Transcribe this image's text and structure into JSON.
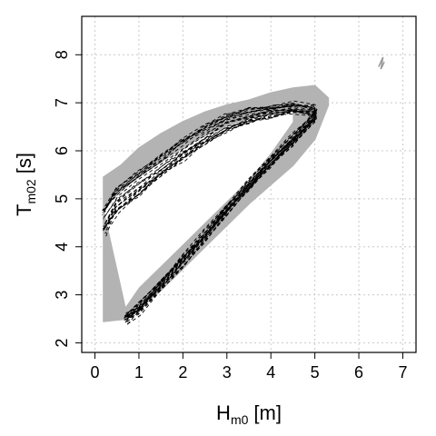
{
  "chart_data": {
    "type": "line",
    "title": "",
    "xlabel": "H",
    "xlabel_sub": "m0",
    "xlabel_unit": "[m]",
    "ylabel": "T",
    "ylabel_sub": "m02",
    "ylabel_unit": "[s]",
    "xlim": [
      -0.3,
      7.3
    ],
    "ylim": [
      1.8,
      8.8
    ],
    "x_ticks": [
      0,
      1,
      2,
      3,
      4,
      5,
      6,
      7
    ],
    "y_ticks": [
      2,
      3,
      4,
      5,
      6,
      7,
      8
    ],
    "x_tick_labels": [
      "0",
      "1",
      "2",
      "3",
      "4",
      "5",
      "6",
      "7"
    ],
    "y_tick_labels": [
      "2",
      "3",
      "4",
      "5",
      "6",
      "7",
      "8"
    ],
    "grid": true,
    "legend": "none",
    "colors": {
      "envelope": "#b3b3b3",
      "ensemble_lines": "#000000",
      "grid": "#c8c8c8"
    },
    "series": [
      {
        "style": "gray-envelope",
        "upper": {
          "x": [
            0.2,
            0.6,
            1.0,
            1.5,
            2.0,
            2.5,
            3.0,
            3.5,
            4.0,
            4.5,
            5.0,
            5.3
          ],
          "y": [
            5.45,
            5.7,
            6.05,
            6.35,
            6.6,
            6.8,
            6.95,
            7.05,
            7.2,
            7.3,
            7.35,
            7.1
          ]
        },
        "lower": {
          "x": [
            5.3,
            5.0,
            4.5,
            4.0,
            3.5,
            3.0,
            2.5,
            2.0,
            1.5,
            1.0,
            0.7,
            0.2
          ],
          "y": [
            6.95,
            6.25,
            5.7,
            5.3,
            4.9,
            4.45,
            4.0,
            3.55,
            3.1,
            2.7,
            2.5,
            2.45
          ]
        },
        "upper_inner": {
          "x": [
            0.2,
            0.6,
            1.0,
            1.5,
            2.0,
            2.5,
            3.0,
            3.5,
            4.0,
            4.5
          ],
          "y": [
            4.8,
            5.15,
            5.45,
            5.75,
            6.05,
            6.3,
            6.5,
            6.65,
            6.75,
            6.85
          ]
        },
        "lower_inner": {
          "x": [
            4.5,
            4.0,
            3.5,
            3.0,
            2.5,
            2.0,
            1.5,
            1.0,
            0.7
          ],
          "y": [
            6.6,
            5.95,
            5.4,
            4.95,
            4.5,
            4.05,
            3.6,
            3.15,
            2.75
          ]
        }
      },
      {
        "style": "black-dashed-ensemble",
        "count": 24,
        "rising_branch": {
          "x": [
            0.7,
            1.0,
            1.5,
            2.0,
            2.5,
            3.0,
            3.5,
            4.0,
            4.5,
            5.0
          ],
          "y": [
            2.5,
            2.7,
            3.2,
            3.7,
            4.2,
            4.75,
            5.25,
            5.75,
            6.2,
            6.7
          ]
        },
        "upper_branch": {
          "x": [
            5.0,
            4.5,
            4.0,
            3.5,
            3.0,
            2.5,
            2.0,
            1.5,
            1.0,
            0.5,
            0.2
          ],
          "y": [
            6.85,
            6.9,
            6.85,
            6.75,
            6.6,
            6.35,
            6.05,
            5.7,
            5.35,
            5.0,
            4.55
          ]
        }
      },
      {
        "style": "gray-outlier",
        "x": [
          6.45,
          6.55,
          6.5,
          6.58
        ],
        "y": [
          7.75,
          7.95,
          7.7,
          7.85
        ]
      }
    ]
  }
}
